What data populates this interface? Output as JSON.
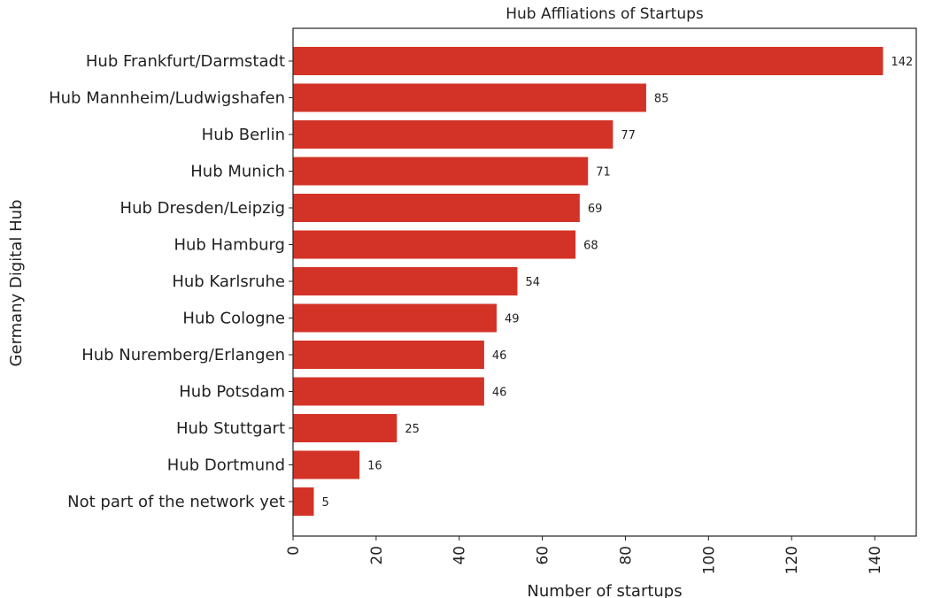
{
  "chart_data": {
    "type": "bar",
    "orientation": "horizontal",
    "title": "Hub Affliations of Startups",
    "xlabel": "Number of startups",
    "ylabel": "Germany Digital Hub",
    "categories": [
      "Hub Frankfurt/Darmstadt",
      "Hub Mannheim/Ludwigshafen",
      "Hub Berlin",
      "Hub Munich",
      "Hub Dresden/Leipzig",
      "Hub Hamburg",
      "Hub Karlsruhe",
      "Hub Cologne",
      "Hub Nuremberg/Erlangen",
      "Hub Potsdam",
      "Hub Stuttgart",
      "Hub Dortmund",
      "Not part of the network yet"
    ],
    "values": [
      142,
      85,
      77,
      71,
      69,
      68,
      54,
      49,
      46,
      46,
      25,
      16,
      5
    ],
    "data_labels": [
      "142",
      "85",
      "77",
      "71",
      "69",
      "68",
      "54",
      "49",
      "46",
      "46",
      "25",
      "16",
      "5"
    ],
    "xticks": [
      "0",
      "20",
      "40",
      "60",
      "80",
      "100",
      "120",
      "140"
    ],
    "xlim": [
      0,
      150
    ],
    "bar_color": "#d33327",
    "grid": false
  }
}
